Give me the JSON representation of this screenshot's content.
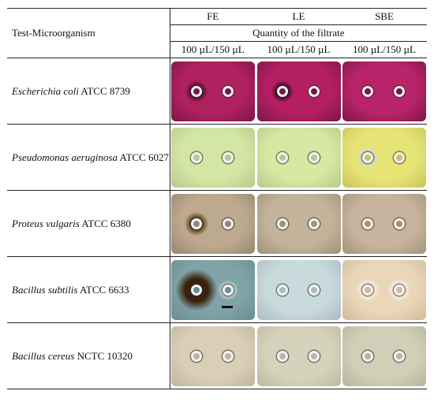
{
  "header": {
    "test_organism": "Test-Microorganism",
    "columns": [
      "FE",
      "LE",
      "SBE"
    ],
    "quantity_label": "Quantity of the filtrate",
    "quantity_values": [
      "100 µL/150 µL",
      "100 µL/150 µL",
      "100 µL/150 µL"
    ]
  },
  "rows": [
    {
      "species": "Escherichia coli",
      "strain": "ATCC 8739",
      "plates": [
        {
          "bg": "#b0215f",
          "rim": "#7d1647",
          "halo1": "#5b0f34",
          "halo2": null
        },
        {
          "bg": "#b41f63",
          "rim": "#7d1647",
          "halo1": "#4a0c2b",
          "halo2": null
        },
        {
          "bg": "#b8246a",
          "rim": "#7d1647",
          "halo1": null,
          "halo2": null
        }
      ]
    },
    {
      "species": "Pseudomonas aeruginosa",
      "strain": "ATCC 6027",
      "plates": [
        {
          "bg": "#d4e6a4",
          "rim": "#b6c98a",
          "halo1": null,
          "halo2": null
        },
        {
          "bg": "#d6e8a2",
          "rim": "#b6c98a",
          "halo1": null,
          "halo2": null
        },
        {
          "bg": "#e6e476",
          "rim": "#c8c45e",
          "halo1": "#d8d9c8",
          "halo2": null
        }
      ]
    },
    {
      "species": "Proteus vulgaris",
      "strain": "ATCC 6380",
      "plates": [
        {
          "bg": "#bca98e",
          "rim": "#968671",
          "halo1": "#6a4a24",
          "halo2": null
        },
        {
          "bg": "#c4b39b",
          "rim": "#a09078",
          "halo1": null,
          "halo2": null
        },
        {
          "bg": "#c6b59c",
          "rim": "#a39278",
          "halo1": null,
          "halo2": null
        }
      ]
    },
    {
      "species": "Bacillus subtilis",
      "strain": "ATCC 6633",
      "plates": [
        {
          "bg": "#7fa3a6",
          "rim": "#6a8d90",
          "halo1": "#3a220c",
          "halo2": "#c9d4d6"
        },
        {
          "bg": "#c9dadd",
          "rim": "#a9bcc0",
          "halo1": null,
          "halo2": null
        },
        {
          "bg": "#ead6b8",
          "rim": "#d1bc9c",
          "halo1": "#f5ecdc",
          "halo2": "#f5ecdc"
        }
      ]
    },
    {
      "species": "Bacillus cereus",
      "strain": "NCTC 10320",
      "plates": [
        {
          "bg": "#d9cfb8",
          "rim": "#bfb59c",
          "halo1": null,
          "halo2": null
        },
        {
          "bg": "#d6d3bc",
          "rim": "#bdb9a1",
          "halo1": null,
          "halo2": null
        },
        {
          "bg": "#d2cfb9",
          "rim": "#b8b59f",
          "halo1": null,
          "halo2": null
        }
      ]
    }
  ]
}
